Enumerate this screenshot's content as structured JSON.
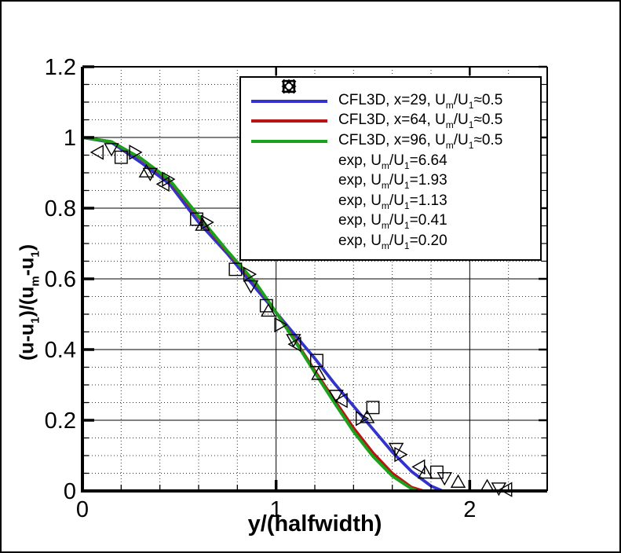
{
  "figure": {
    "background": "#ffffff",
    "border_color": "#000000"
  },
  "chart_data": {
    "type": "line",
    "title": "",
    "xlabel": "y/(halfwidth)",
    "ylabel": "(u-u1)/(um-u1)",
    "ylabel_tokens": [
      [
        "t",
        "(u-u"
      ],
      [
        "sub",
        "1"
      ],
      [
        "t",
        ")/(u"
      ],
      [
        "sub",
        "m"
      ],
      [
        "t",
        "-u"
      ],
      [
        "sub",
        "1"
      ],
      [
        "t",
        ")"
      ]
    ],
    "xlim": [
      0,
      2.4
    ],
    "ylim": [
      0,
      1.2
    ],
    "x_major_ticks": [
      0,
      1,
      2
    ],
    "x_major_labels": [
      "0",
      "1",
      "2"
    ],
    "x_minor_step": 0.2,
    "y_major_step": 0.2,
    "y_major_ticks": [
      0,
      0.2,
      0.4,
      0.6,
      0.8,
      1.0,
      1.2
    ],
    "y_major_labels": [
      "0",
      "0.2",
      "0.4",
      "0.6",
      "0.8",
      "1",
      "1.2"
    ],
    "y_minor_step": 0.05,
    "grid": {
      "major": "solid-thin-black",
      "minor": "dotted-black"
    },
    "legend_position": "top-right-inside",
    "colors": {
      "cfl3d_x29": "#3333cc",
      "cfl3d_x64": "#b81414",
      "cfl3d_x96": "#1ba11b",
      "experiment": "#000000"
    },
    "series": [
      {
        "name": "CFL3D, x=29, Um/U1≈0.5",
        "label_tokens": [
          [
            "t",
            "CFL3D, x=29, U"
          ],
          [
            "sub",
            "m"
          ],
          [
            "t",
            "/U"
          ],
          [
            "sub",
            "1"
          ],
          [
            "t",
            "≈0.5"
          ]
        ],
        "kind": "line",
        "color": "#3333cc",
        "points": [
          [
            0,
            1.0
          ],
          [
            0.15,
            0.986
          ],
          [
            0.3,
            0.93
          ],
          [
            0.45,
            0.868
          ],
          [
            0.6,
            0.76
          ],
          [
            0.75,
            0.67
          ],
          [
            0.9,
            0.57
          ],
          [
            1.0,
            0.505
          ],
          [
            1.1,
            0.44
          ],
          [
            1.2,
            0.375
          ],
          [
            1.3,
            0.305
          ],
          [
            1.4,
            0.24
          ],
          [
            1.5,
            0.175
          ],
          [
            1.6,
            0.11
          ],
          [
            1.7,
            0.055
          ],
          [
            1.8,
            0.014
          ],
          [
            1.86,
            0.0
          ]
        ]
      },
      {
        "name": "CFL3D, x=64, Um/U1≈0.5",
        "label_tokens": [
          [
            "t",
            "CFL3D, x=64, U"
          ],
          [
            "sub",
            "m"
          ],
          [
            "t",
            "/U"
          ],
          [
            "sub",
            "1"
          ],
          [
            "t",
            "≈0.5"
          ]
        ],
        "kind": "line",
        "color": "#b81414",
        "points": [
          [
            0,
            1.0
          ],
          [
            0.15,
            0.988
          ],
          [
            0.3,
            0.941
          ],
          [
            0.45,
            0.878
          ],
          [
            0.6,
            0.775
          ],
          [
            0.75,
            0.676
          ],
          [
            0.9,
            0.583
          ],
          [
            1.0,
            0.505
          ],
          [
            1.1,
            0.425
          ],
          [
            1.2,
            0.34
          ],
          [
            1.3,
            0.258
          ],
          [
            1.4,
            0.178
          ],
          [
            1.5,
            0.108
          ],
          [
            1.6,
            0.05
          ],
          [
            1.7,
            0.01
          ],
          [
            1.76,
            0.0
          ]
        ]
      },
      {
        "name": "CFL3D, x=96, Um/U1≈0.5",
        "label_tokens": [
          [
            "t",
            "CFL3D, x=96, U"
          ],
          [
            "sub",
            "m"
          ],
          [
            "t",
            "/U"
          ],
          [
            "sub",
            "1"
          ],
          [
            "t",
            "≈0.5"
          ]
        ],
        "kind": "line",
        "color": "#1ba11b",
        "points": [
          [
            0,
            1.0
          ],
          [
            0.15,
            0.988
          ],
          [
            0.3,
            0.942
          ],
          [
            0.45,
            0.88
          ],
          [
            0.6,
            0.778
          ],
          [
            0.75,
            0.678
          ],
          [
            0.9,
            0.585
          ],
          [
            1.0,
            0.505
          ],
          [
            1.1,
            0.422
          ],
          [
            1.2,
            0.335
          ],
          [
            1.3,
            0.25
          ],
          [
            1.4,
            0.168
          ],
          [
            1.5,
            0.098
          ],
          [
            1.6,
            0.042
          ],
          [
            1.7,
            0.006
          ],
          [
            1.73,
            0.0
          ]
        ]
      },
      {
        "name": "exp, Um/U1=6.64",
        "label_tokens": [
          [
            "t",
            "exp, U"
          ],
          [
            "sub",
            "m"
          ],
          [
            "t",
            "/U"
          ],
          [
            "sub",
            "1"
          ],
          [
            "t",
            "=6.64"
          ]
        ],
        "kind": "scatter",
        "marker": "square",
        "color": "#000000",
        "points": [
          [
            0.2,
            0.944
          ],
          [
            0.59,
            0.769
          ],
          [
            0.79,
            0.627
          ],
          [
            0.95,
            0.524
          ],
          [
            1.21,
            0.369
          ],
          [
            1.5,
            0.236
          ],
          [
            1.83,
            0.053
          ]
        ]
      },
      {
        "name": "exp, Um/U1=1.93",
        "label_tokens": [
          [
            "t",
            "exp, U"
          ],
          [
            "sub",
            "m"
          ],
          [
            "t",
            "/U"
          ],
          [
            "sub",
            "1"
          ],
          [
            "t",
            "=1.93"
          ]
        ],
        "kind": "scatter",
        "marker": "triangle-up",
        "color": "#000000",
        "points": [
          [
            0.33,
            0.903
          ],
          [
            0.62,
            0.752
          ],
          [
            0.96,
            0.509
          ],
          [
            1.22,
            0.33
          ],
          [
            1.47,
            0.208
          ],
          [
            1.77,
            0.051
          ],
          [
            1.94,
            0.025
          ],
          [
            2.09,
            0.012
          ]
        ]
      },
      {
        "name": "exp, Um/U1=1.13",
        "label_tokens": [
          [
            "t",
            "exp, U"
          ],
          [
            "sub",
            "m"
          ],
          [
            "t",
            "/U"
          ],
          [
            "sub",
            "1"
          ],
          [
            "t",
            "=1.13"
          ]
        ],
        "kind": "scatter",
        "marker": "triangle-down",
        "color": "#000000",
        "points": [
          [
            0.15,
            0.968
          ],
          [
            0.35,
            0.898
          ],
          [
            0.87,
            0.58
          ],
          [
            1.09,
            0.428
          ],
          [
            1.31,
            0.27
          ],
          [
            1.62,
            0.12
          ],
          [
            1.87,
            0.037
          ],
          [
            2.15,
            0.008
          ]
        ]
      },
      {
        "name": "exp, Um/U1=0.41",
        "label_tokens": [
          [
            "t",
            "exp, U"
          ],
          [
            "sub",
            "m"
          ],
          [
            "t",
            "/U"
          ],
          [
            "sub",
            "1"
          ],
          [
            "t",
            "=0.41"
          ]
        ],
        "kind": "scatter",
        "marker": "triangle-right",
        "color": "#000000",
        "points": [
          [
            0.27,
            0.958
          ],
          [
            0.44,
            0.882
          ],
          [
            0.64,
            0.76
          ],
          [
            0.86,
            0.613
          ],
          [
            1.02,
            0.47
          ],
          [
            1.44,
            0.205
          ],
          [
            1.64,
            0.103
          ]
        ]
      },
      {
        "name": "exp, Um/U1=0.20",
        "label_tokens": [
          [
            "t",
            "exp, U"
          ],
          [
            "sub",
            "m"
          ],
          [
            "t",
            "/U"
          ],
          [
            "sub",
            "1"
          ],
          [
            "t",
            "=0.20"
          ]
        ],
        "kind": "scatter",
        "marker": "triangle-left",
        "color": "#000000",
        "points": [
          [
            0.08,
            0.958
          ],
          [
            0.42,
            0.868
          ],
          [
            1.1,
            0.415
          ],
          [
            1.34,
            0.256
          ],
          [
            1.74,
            0.068
          ],
          [
            2.19,
            0.004
          ]
        ]
      }
    ]
  }
}
